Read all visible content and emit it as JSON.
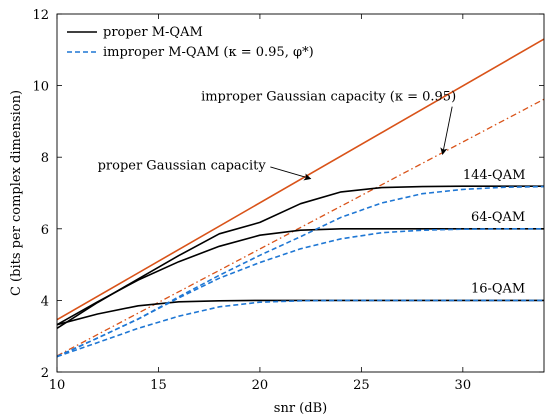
{
  "chart_data": {
    "type": "line",
    "xlabel": "snr (dB)",
    "ylabel": "C (bits per complex dimension)",
    "xlim": [
      10,
      34
    ],
    "ylim": [
      2,
      12
    ],
    "xticks": [
      10,
      15,
      20,
      25,
      30
    ],
    "yticks": [
      2,
      4,
      6,
      8,
      10,
      12
    ],
    "grid": false,
    "legend": {
      "placement": "top-left",
      "entries": [
        {
          "label": "proper M-QAM",
          "series": "proper"
        },
        {
          "label": "improper M-QAM (κ = 0.95, φ*)",
          "series": "improper"
        }
      ]
    },
    "colors": {
      "proper_qam": "#000000",
      "improper_qam": "#1f77d4",
      "gaussian": "#d95319"
    },
    "series": [
      {
        "group": "proper_gaussian",
        "style": "solid-orange",
        "x": [
          10,
          34
        ],
        "y": [
          3.46,
          11.3
        ]
      },
      {
        "group": "improper_gaussian",
        "style": "dashdot-orange",
        "x": [
          10,
          34
        ],
        "y": [
          2.45,
          9.62
        ]
      },
      {
        "group": "proper_qam",
        "style": "solid-black",
        "x": [
          10,
          12,
          14,
          16,
          18,
          20,
          22,
          24,
          26,
          28,
          30,
          32,
          34
        ],
        "y": [
          3.32,
          3.62,
          3.85,
          3.96,
          3.99,
          4.0,
          4.0,
          4.0,
          4.0,
          4.0,
          4.0,
          4.0,
          4.0
        ]
      },
      {
        "group": "proper_qam",
        "style": "solid-black",
        "x": [
          10,
          12,
          14,
          16,
          18,
          20,
          22,
          24,
          26,
          28,
          30,
          32,
          34
        ],
        "y": [
          3.32,
          3.96,
          4.57,
          5.08,
          5.51,
          5.82,
          5.96,
          6.0,
          6.0,
          6.0,
          6.0,
          6.0,
          6.0
        ]
      },
      {
        "group": "proper_qam",
        "style": "solid-black",
        "x": [
          10,
          12,
          14,
          16,
          18,
          20,
          22,
          24,
          26,
          28,
          30,
          32,
          34
        ],
        "y": [
          3.22,
          3.94,
          4.6,
          5.25,
          5.86,
          6.18,
          6.7,
          7.03,
          7.15,
          7.18,
          7.19,
          7.19,
          7.19
        ]
      },
      {
        "group": "improper_qam",
        "style": "dashed-blue",
        "x": [
          10,
          12,
          14,
          16,
          18,
          20,
          22,
          24,
          26,
          28,
          30,
          32,
          34
        ],
        "y": [
          2.43,
          2.82,
          3.22,
          3.56,
          3.82,
          3.95,
          3.99,
          4.0,
          4.0,
          4.0,
          4.0,
          4.0,
          4.0
        ]
      },
      {
        "group": "improper_qam",
        "style": "dashed-blue",
        "x": [
          10,
          12,
          14,
          16,
          18,
          20,
          22,
          24,
          26,
          28,
          30,
          32,
          34
        ],
        "y": [
          2.43,
          2.95,
          3.48,
          4.07,
          4.62,
          5.06,
          5.44,
          5.72,
          5.89,
          5.96,
          5.99,
          6.0,
          6.0
        ]
      },
      {
        "group": "improper_qam",
        "style": "dashed-blue",
        "x": [
          10,
          12,
          14,
          16,
          18,
          20,
          22,
          24,
          26,
          28,
          30,
          32,
          34
        ],
        "y": [
          2.43,
          2.95,
          3.48,
          4.1,
          4.7,
          5.26,
          5.78,
          6.32,
          6.72,
          6.98,
          7.1,
          7.16,
          7.18
        ]
      }
    ],
    "annotations": [
      {
        "id": "improper_gaussian_label",
        "text": "improper Gaussian capacity (κ = 0.95)",
        "x": 17.1,
        "y": 9.58,
        "arrow_to_x": 29.0,
        "arrow_to_y": 8.08
      },
      {
        "id": "proper_gaussian_label",
        "text": "proper Gaussian capacity",
        "x": 12.0,
        "y": 7.65,
        "arrow_to_x": 22.5,
        "arrow_to_y": 7.4
      },
      {
        "id": "qam144_label",
        "text": "144-QAM",
        "x": 30.0,
        "y": 7.39
      },
      {
        "id": "qam64_label",
        "text": "64-QAM",
        "x": 30.4,
        "y": 6.22
      },
      {
        "id": "qam16_label",
        "text": "16-QAM",
        "x": 30.4,
        "y": 4.22
      }
    ]
  }
}
